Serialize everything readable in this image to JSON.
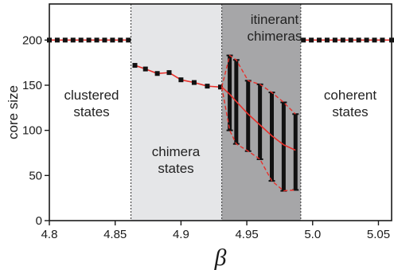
{
  "chart_data": {
    "type": "line",
    "xlabel": "β",
    "ylabel": "core size",
    "xlim": [
      4.8,
      5.06
    ],
    "ylim": [
      0,
      240
    ],
    "x_ticks": [
      "4.8",
      "4.85",
      "4.9",
      "4.95",
      "5.0",
      "5.05"
    ],
    "y_ticks": [
      "0",
      "50",
      "100",
      "150",
      "200"
    ],
    "regions": [
      {
        "label": [
          "clustered",
          "states"
        ],
        "x0": 4.8,
        "x1": 4.862,
        "color": "#ffffff"
      },
      {
        "label": [
          "chimera",
          "states"
        ],
        "x0": 4.862,
        "x1": 4.931,
        "color": "#e5e6e8"
      },
      {
        "label": [
          "itinerant",
          "chimeras"
        ],
        "x0": 4.931,
        "x1": 4.991,
        "color": "#a6a6a8"
      },
      {
        "label": [
          "coherent",
          "states"
        ],
        "x0": 4.991,
        "x1": 5.06,
        "color": "#ffffff"
      }
    ],
    "series": [
      {
        "x": [
          4.8,
          4.806,
          4.812,
          4.818,
          4.824,
          4.83,
          4.836,
          4.842,
          4.848,
          4.854,
          4.86
        ],
        "values": [
          200,
          200,
          200,
          200,
          200,
          200,
          200,
          200,
          200,
          200,
          200
        ]
      },
      {
        "x": [
          4.865,
          4.873,
          4.882,
          4.891,
          4.9,
          4.91,
          4.92,
          4.93
        ],
        "values": [
          172,
          168,
          163,
          164,
          156,
          153,
          149,
          148
        ]
      },
      {
        "x": [
          4.993,
          4.999,
          5.005,
          5.011,
          5.017,
          5.023,
          5.029,
          5.035,
          5.041,
          5.047,
          5.053,
          5.06
        ],
        "values": [
          200,
          200,
          200,
          200,
          200,
          200,
          200,
          200,
          200,
          200,
          200,
          200
        ]
      }
    ],
    "itinerant": {
      "x": [
        4.937,
        4.942,
        4.951,
        4.96,
        4.969,
        4.978,
        4.987
      ],
      "mean": [
        140,
        132,
        118,
        106,
        94,
        84,
        78
      ],
      "max": [
        183,
        178,
        155,
        151,
        142,
        131,
        118
      ],
      "min": [
        100,
        85,
        77,
        68,
        44,
        33,
        34
      ]
    },
    "colors": {
      "line": "#e8312c",
      "marker": "#111111",
      "band": "#111111"
    }
  }
}
